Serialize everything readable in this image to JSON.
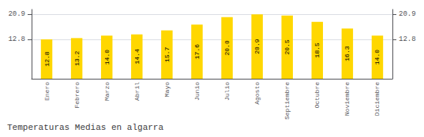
{
  "chart_data": {
    "type": "bar",
    "title": "Temperaturas Medias en algarra",
    "categories": [
      "Enero",
      "Febrero",
      "Marzo",
      "Abril",
      "Mayo",
      "Junio",
      "Julio",
      "Agosto",
      "Septiembre",
      "Octubre",
      "Noviembre",
      "Diciembre"
    ],
    "values": [
      12.8,
      13.2,
      14.0,
      14.4,
      15.7,
      17.6,
      20.0,
      20.9,
      20.5,
      18.5,
      16.3,
      14.0
    ],
    "value_labels": [
      "12.8",
      "13.2",
      "14.0",
      "14.4",
      "15.7",
      "17.6",
      "20.0",
      "20.9",
      "20.5",
      "18.5",
      "16.3",
      "14.0"
    ],
    "color": "#FFD700",
    "ylim": [
      0,
      22.5
    ],
    "yticks": [
      12.8,
      20.9
    ],
    "y2lim": [
      0,
      22.5
    ],
    "y2ticks": [
      12.8,
      20.9
    ],
    "grid": true,
    "data_labels": true
  }
}
